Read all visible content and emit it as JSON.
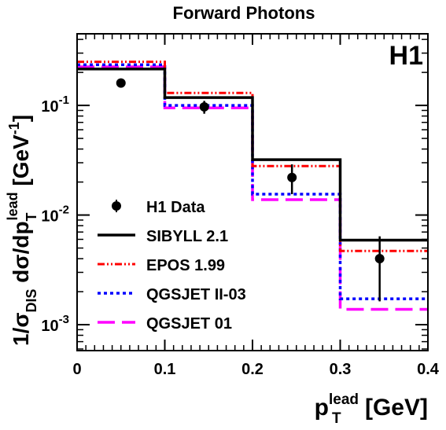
{
  "chart_data": {
    "type": "line",
    "title": "Forward Photons",
    "experiment_label": "H1",
    "xlabel": {
      "main": "p",
      "sub": "T",
      "sup": "lead",
      "unit": " [GeV]"
    },
    "ylabel": {
      "prefix": "1/σ",
      "prefix_sub": "DIS",
      "mid": " dσ/dp",
      "mid_sub": "T",
      "mid_sup": "lead",
      "unit": " [GeV",
      "unit_sup": "-1",
      "unit_close": "]"
    },
    "xlim": [
      0,
      0.4
    ],
    "ylim": [
      0.00058,
      0.45
    ],
    "yscale": "log",
    "grid": false,
    "legend_position": "lower-left",
    "x_ticks": [
      "0",
      "0.1",
      "0.2",
      "0.3",
      "0.4"
    ],
    "x_tick_values": [
      0,
      0.1,
      0.2,
      0.3,
      0.4
    ],
    "y_ticks": [
      {
        "value": 0.1,
        "base": "10",
        "exp": "-1"
      },
      {
        "value": 0.01,
        "base": "10",
        "exp": "-2"
      },
      {
        "value": 0.001,
        "base": "10",
        "exp": "-3"
      }
    ],
    "bin_edges": [
      0,
      0.1,
      0.2,
      0.3,
      0.4
    ],
    "series": [
      {
        "name": "SIBYLL 2.1",
        "style": "solid",
        "color": "#000000",
        "values": [
          0.215,
          0.118,
          0.032,
          0.0059
        ]
      },
      {
        "name": "EPOS 1.99",
        "style": "dashdot",
        "color": "#ff0000",
        "values": [
          0.25,
          0.13,
          0.028,
          0.0047
        ]
      },
      {
        "name": "QGSJET II-03",
        "style": "dotted",
        "color": "#0000ff",
        "values": [
          0.235,
          0.1,
          0.0155,
          0.00172
        ]
      },
      {
        "name": "QGSJET 01",
        "style": "longdash",
        "color": "#ff00ff",
        "values": [
          0.225,
          0.095,
          0.0138,
          0.00138
        ]
      }
    ],
    "data": {
      "name": "H1 Data",
      "color": "#000000",
      "points": [
        {
          "x": 0.05,
          "y": 0.16,
          "err_low": 0.152,
          "err_high": 0.168
        },
        {
          "x": 0.145,
          "y": 0.097,
          "err_low": 0.084,
          "err_high": 0.11
        },
        {
          "x": 0.245,
          "y": 0.022,
          "err_low": 0.0155,
          "err_high": 0.029
        },
        {
          "x": 0.345,
          "y": 0.004,
          "err_low": 0.00163,
          "err_high": 0.0064
        }
      ]
    }
  }
}
